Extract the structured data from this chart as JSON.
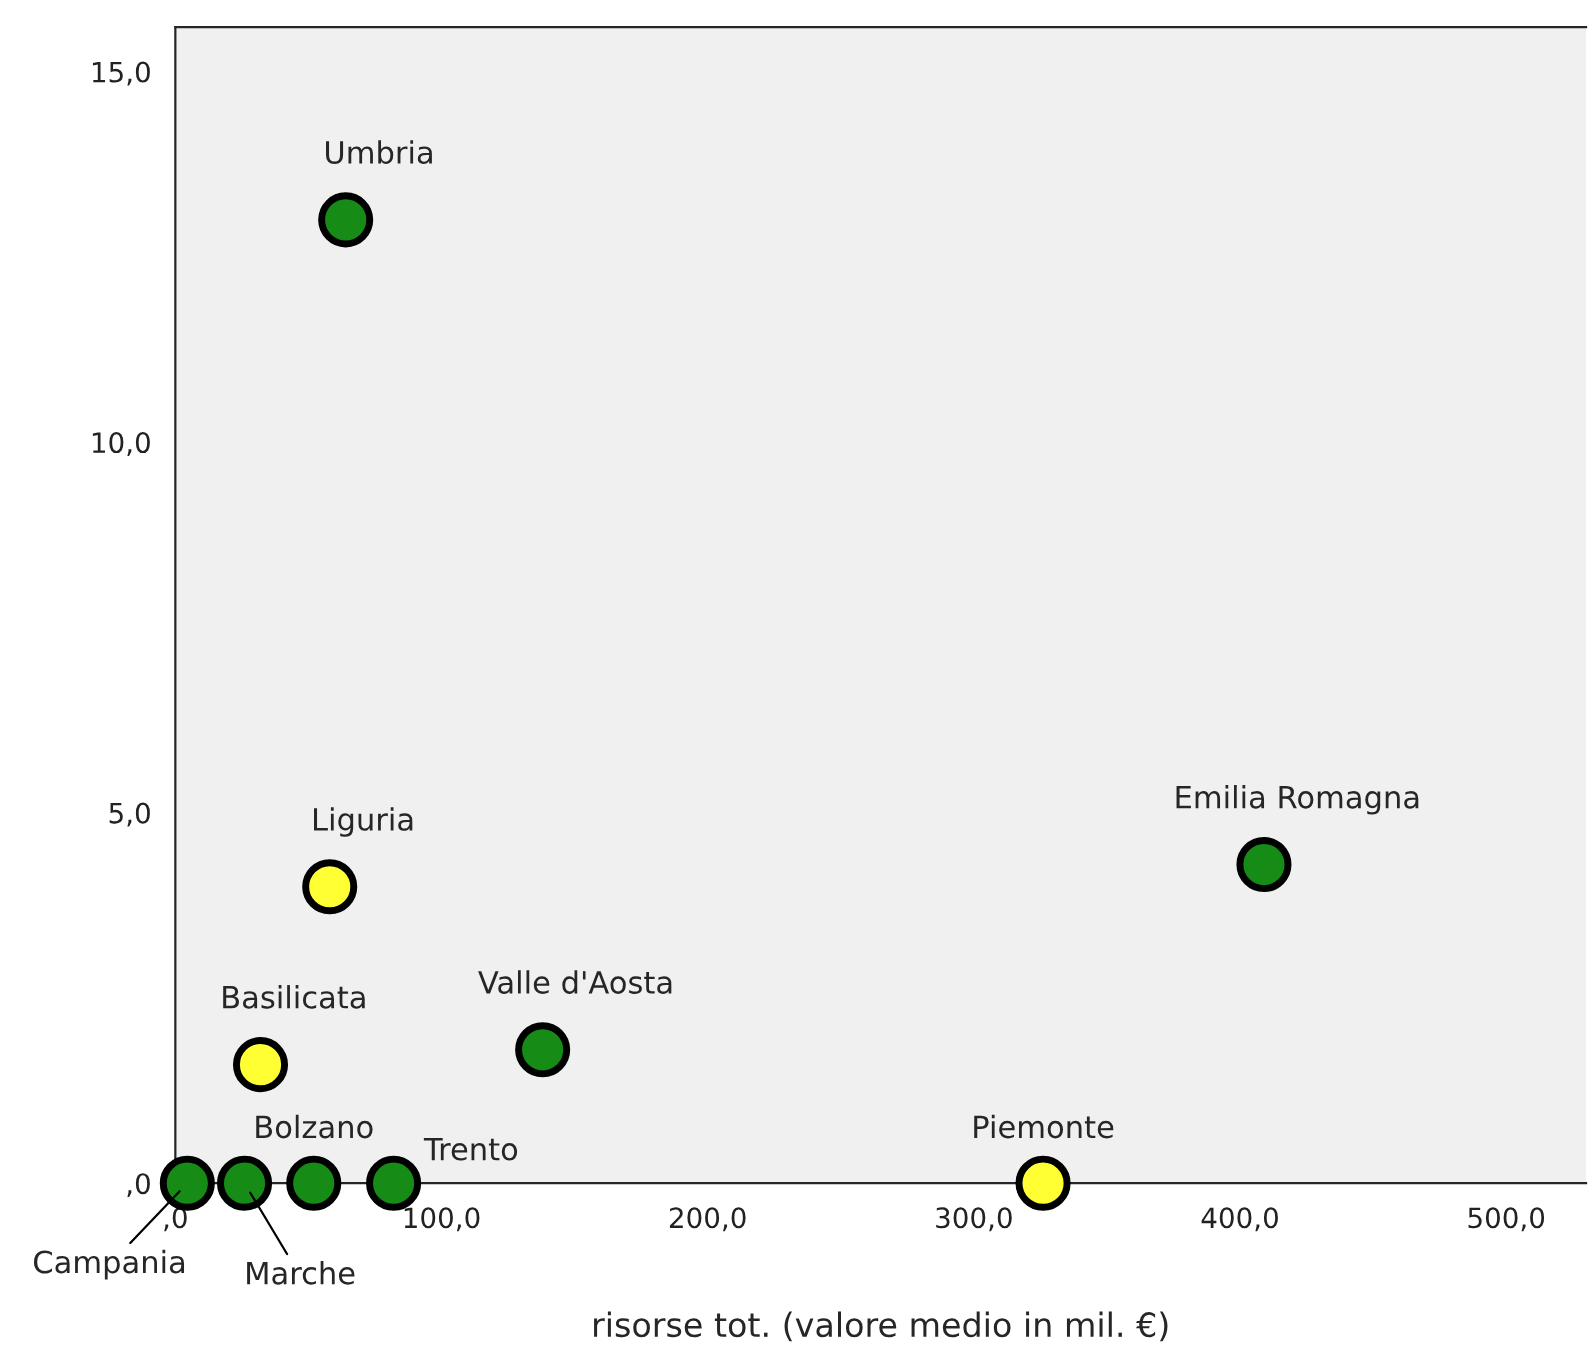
{
  "chart_data": {
    "type": "scatter",
    "xlabel": "risorse tot. (valore medio in mil. €)",
    "series": [
      {
        "color": "#168c16",
        "x": [
          64,
          138,
          409,
          4.5,
          26,
          52,
          82
        ],
        "values": [
          13.0,
          1.8,
          4.3,
          0,
          0,
          0,
          0
        ]
      },
      {
        "color": "#ffff33",
        "x": [
          58,
          32,
          326
        ],
        "values": [
          4.0,
          1.6,
          0
        ]
      }
    ],
    "xlim": [
      0,
      530
    ],
    "ylim": [
      0,
      15.6
    ],
    "xticks": [
      {
        "value": 0,
        "label": ",0"
      },
      {
        "value": 100,
        "label": "100,0"
      },
      {
        "value": 200,
        "label": "200,0"
      },
      {
        "value": 300,
        "label": "300,0"
      },
      {
        "value": 400,
        "label": "400,0"
      },
      {
        "value": 500,
        "label": "500,0"
      }
    ],
    "yticks": [
      {
        "value": 0,
        "label": ",0"
      },
      {
        "value": 5,
        "label": "5,0"
      },
      {
        "value": 10,
        "label": "10,0"
      },
      {
        "value": 15,
        "label": "15,0"
      }
    ],
    "marker": "circle",
    "grid": false,
    "legend": false,
    "annotations": [
      {
        "text": "Umbria",
        "x": 64,
        "y": 13.0
      },
      {
        "text": "Liguria",
        "x": 58,
        "y": 4.0
      },
      {
        "text": "Basilicata",
        "x": 32,
        "y": 1.6
      },
      {
        "text": "Valle d'Aosta",
        "x": 138,
        "y": 1.8
      },
      {
        "text": "Emilia Romagna",
        "x": 409,
        "y": 4.3
      },
      {
        "text": "Piemonte",
        "x": 326,
        "y": 0
      },
      {
        "text": "Campania",
        "x": 4.5,
        "y": 0
      },
      {
        "text": "Marche",
        "x": 26,
        "y": 0
      },
      {
        "text": "Bolzano",
        "x": 52,
        "y": 0
      },
      {
        "text": "Trento",
        "x": 82,
        "y": 0
      }
    ]
  }
}
